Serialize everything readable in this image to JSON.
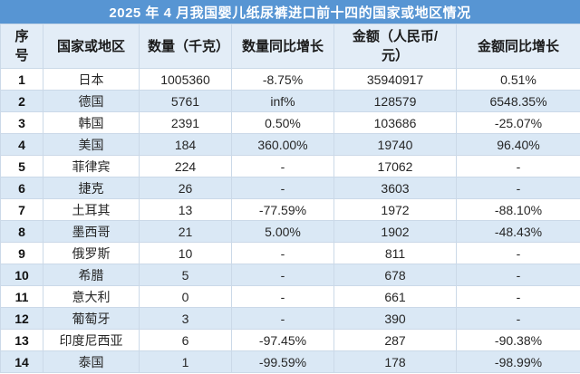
{
  "title": "2025 年 4 月我国婴儿纸尿裤进口前十四的国家或地区情况",
  "chart_data": {
    "type": "table",
    "title": "2025 年 4 月我国婴儿纸尿裤进口前十四的国家或地区情况",
    "columns": [
      "序号",
      "国家或地区",
      "数量（千克）",
      "数量同比增长",
      "金额（人民币/元）",
      "金额同比增长"
    ],
    "rows": [
      [
        "1",
        "日本",
        "1005360",
        "-8.75%",
        "35940917",
        "0.51%"
      ],
      [
        "2",
        "德国",
        "5761",
        "inf%",
        "128579",
        "6548.35%"
      ],
      [
        "3",
        "韩国",
        "2391",
        "0.50%",
        "103686",
        "-25.07%"
      ],
      [
        "4",
        "美国",
        "184",
        "360.00%",
        "19740",
        "96.40%"
      ],
      [
        "5",
        "菲律宾",
        "224",
        "-",
        "17062",
        "-"
      ],
      [
        "6",
        "捷克",
        "26",
        "-",
        "3603",
        "-"
      ],
      [
        "7",
        "土耳其",
        "13",
        "-77.59%",
        "1972",
        "-88.10%"
      ],
      [
        "8",
        "墨西哥",
        "21",
        "5.00%",
        "1902",
        "-48.43%"
      ],
      [
        "9",
        "俄罗斯",
        "10",
        "-",
        "811",
        "-"
      ],
      [
        "10",
        "希腊",
        "5",
        "-",
        "678",
        "-"
      ],
      [
        "11",
        "意大利",
        "0",
        "-",
        "661",
        "-"
      ],
      [
        "12",
        "葡萄牙",
        "3",
        "-",
        "390",
        "-"
      ],
      [
        "13",
        "印度尼西亚",
        "6",
        "-97.45%",
        "287",
        "-90.38%"
      ],
      [
        "14",
        "泰国",
        "1",
        "-99.59%",
        "178",
        "-98.99%"
      ]
    ]
  },
  "colors": {
    "title_bar": "#5795D3",
    "header_bg": "#E3EDF7",
    "stripe_bg": "#DAE8F5",
    "border": "#CBD9E8",
    "title_text": "#FFFFFF",
    "body_text": "#262626"
  }
}
